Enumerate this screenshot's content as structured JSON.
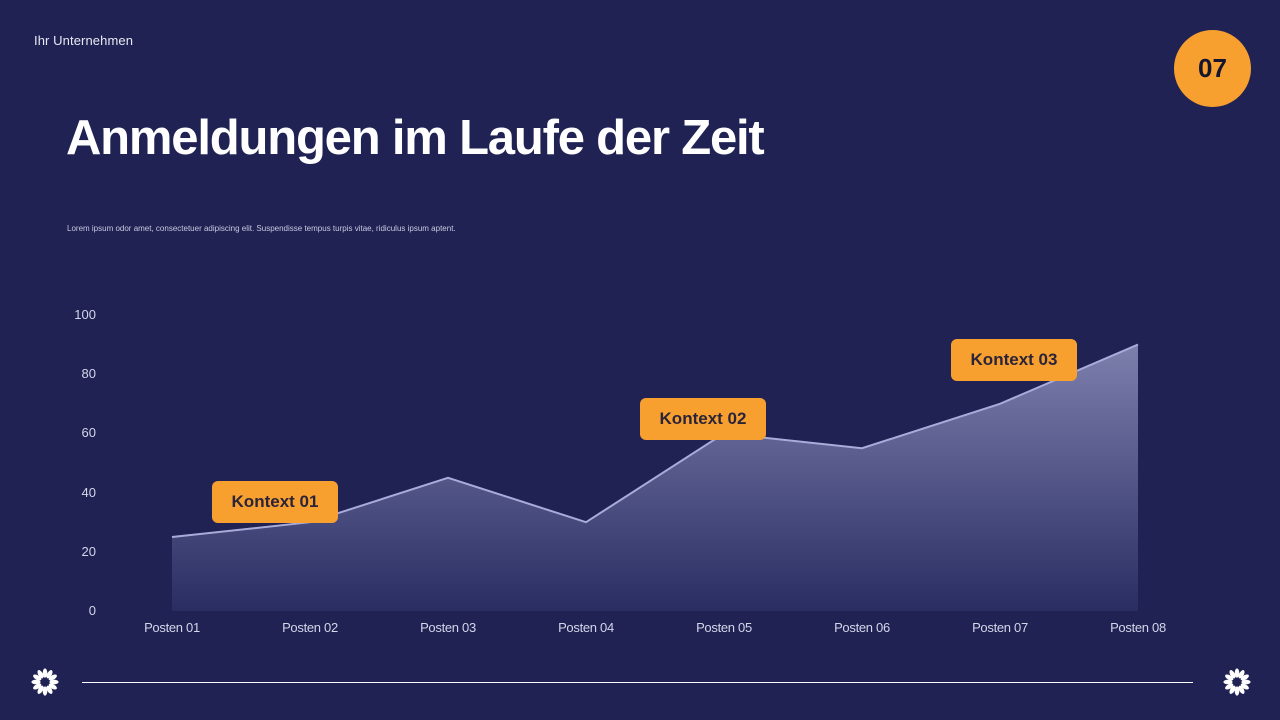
{
  "header": {
    "company": "Ihr Unternehmen",
    "page_number": "07",
    "title": "Anmeldungen im Laufe der Zeit",
    "subtitle": "Lorem ipsum odor amet, consectetuer adipiscing elit. Suspendisse tempus turpis vitae, ridiculus ipsum aptent."
  },
  "colors": {
    "background": "#1f2253",
    "accent": "#f7a030",
    "line": "#a9acd8",
    "area_top": "#7d80ad",
    "text_dark": "#2b2438"
  },
  "callouts": [
    {
      "label": "Kontext 01",
      "category_index": 1
    },
    {
      "label": "Kontext 02",
      "category_index": 4
    },
    {
      "label": "Kontext 03",
      "category_index": 6
    }
  ],
  "footer": {
    "left_icon": "flower-icon",
    "right_icon": "flower-icon"
  },
  "chart_data": {
    "type": "area",
    "title": "Anmeldungen im Laufe der Zeit",
    "xlabel": "",
    "ylabel": "",
    "categories": [
      "Posten 01",
      "Posten 02",
      "Posten 03",
      "Posten 04",
      "Posten 05",
      "Posten 06",
      "Posten 07",
      "Posten 08"
    ],
    "values": [
      25,
      30,
      45,
      30,
      60,
      55,
      70,
      90
    ],
    "yticks": [
      "0",
      "20",
      "40",
      "60",
      "80",
      "100"
    ],
    "ylim": [
      0,
      100
    ],
    "grid": false,
    "legend": "none",
    "annotations": [
      "Kontext 01",
      "Kontext 02",
      "Kontext 03"
    ]
  }
}
